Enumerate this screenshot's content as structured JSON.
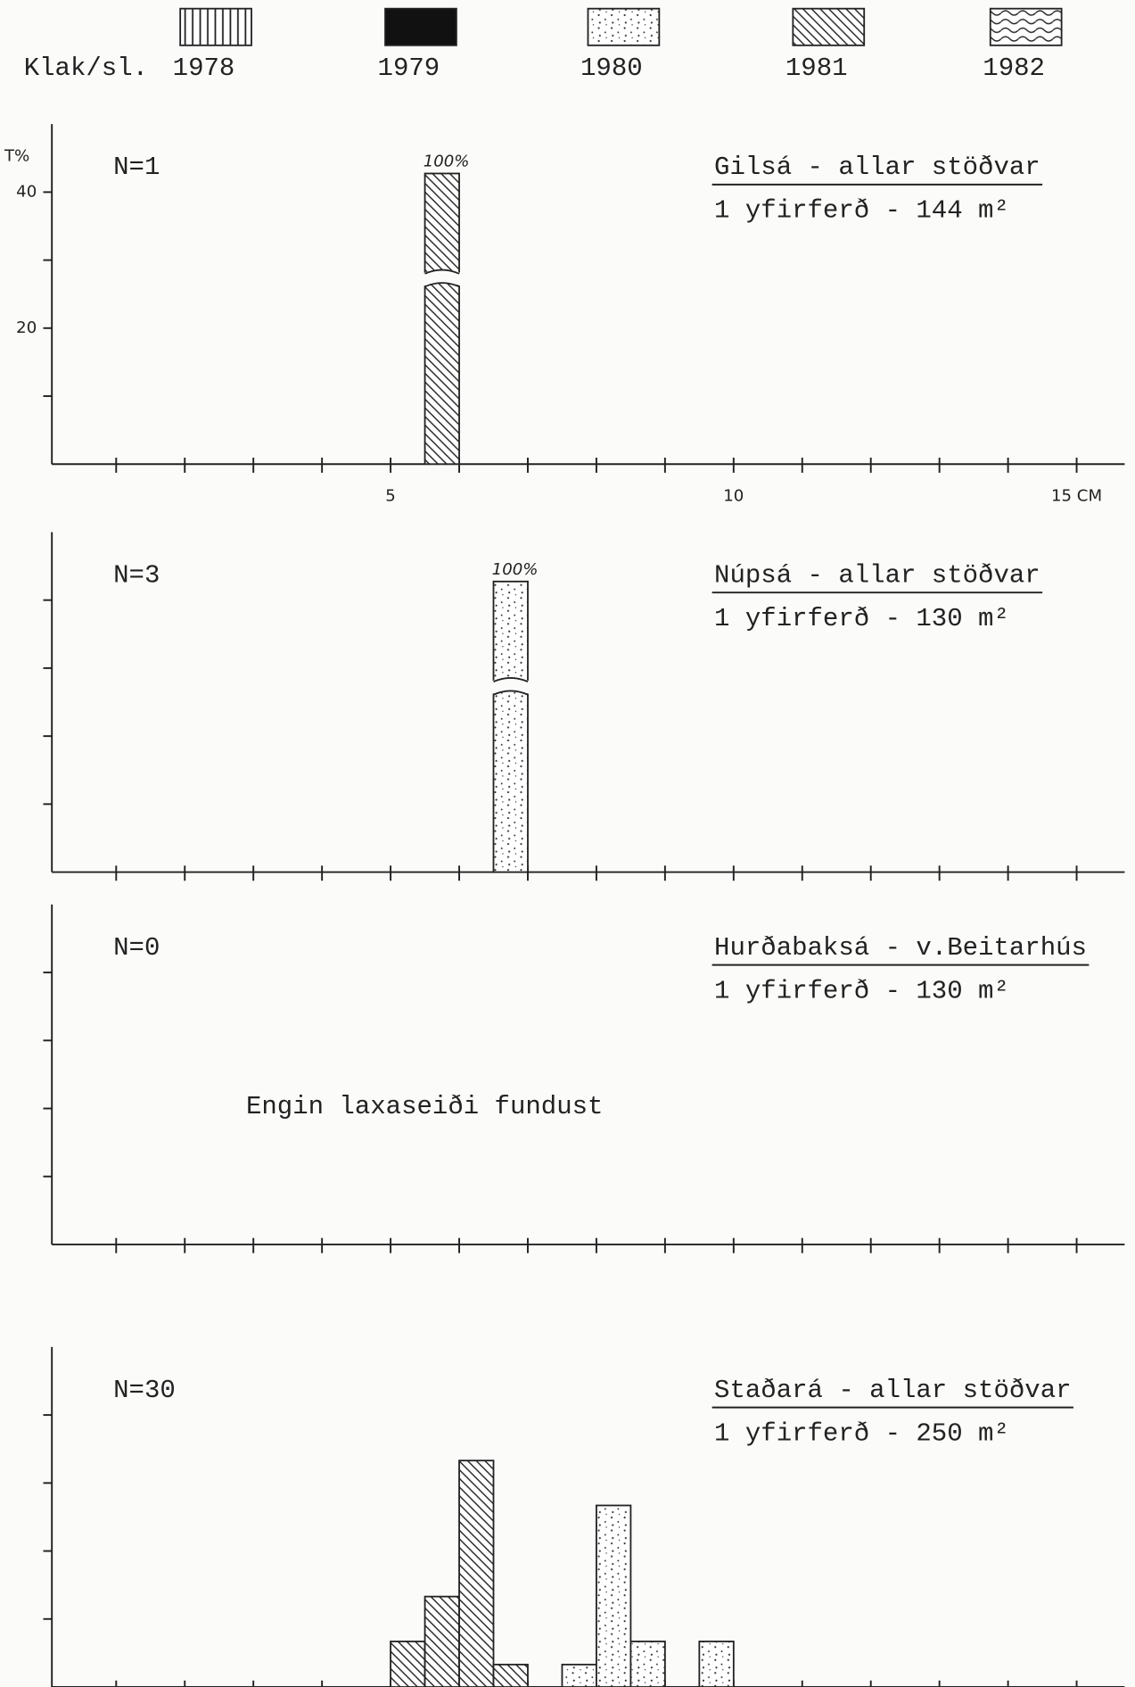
{
  "legend": {
    "label": "Klak/sl.",
    "items": [
      {
        "name": "1978",
        "pattern": "vertical"
      },
      {
        "name": "1979",
        "pattern": "solid"
      },
      {
        "name": "1980",
        "pattern": "dots"
      },
      {
        "name": "1981",
        "pattern": "diagonal"
      },
      {
        "name": "1982",
        "pattern": "wavy"
      }
    ]
  },
  "chart_data": [
    {
      "type": "histogram",
      "note": "N=1",
      "title": "Gilsá - allar stöðvar",
      "subtitle": "1 yfirferð - 144 m²",
      "ylabel": "T%",
      "xlim": [
        0,
        15.7
      ],
      "ylim": [
        0,
        50
      ],
      "xticks": [
        5,
        10,
        {
          "value": 15,
          "label": "15 CM"
        }
      ],
      "xminor_ticks": [
        1,
        2,
        3,
        4,
        6,
        7,
        8,
        9,
        11,
        12,
        13,
        14
      ],
      "yticks": [
        20,
        40
      ],
      "yminor_ticks": [
        10,
        30
      ],
      "series": [
        {
          "pattern": "diagonal",
          "broken": true,
          "bins": [
            5.5,
            6.0
          ],
          "values": [
            100
          ],
          "value_labels": [
            "100%"
          ]
        }
      ]
    },
    {
      "type": "histogram",
      "note": "N=3",
      "title": "Núpsá - allar stöðvar",
      "subtitle": "1 yfirferð - 130 m²",
      "xlim": [
        0,
        15.7
      ],
      "ylim": [
        0,
        50
      ],
      "xminor_ticks": [
        1,
        2,
        3,
        4,
        5,
        6,
        7,
        8,
        9,
        10,
        11,
        12,
        13,
        14,
        15
      ],
      "yminor_ticks": [
        10,
        20,
        30,
        40
      ],
      "series": [
        {
          "pattern": "dots",
          "broken": true,
          "bins": [
            6.5,
            7.0
          ],
          "values": [
            100
          ],
          "value_labels": [
            "100%"
          ]
        }
      ]
    },
    {
      "type": "histogram",
      "note": "N=0",
      "title": "Hurðabaksá - v.Beitarhús",
      "subtitle": "1 yfirferð - 130 m²",
      "annotation": "Engin laxaseiði fundust",
      "xlim": [
        0,
        15.7
      ],
      "ylim": [
        0,
        50
      ],
      "xminor_ticks": [
        1,
        2,
        3,
        4,
        5,
        6,
        7,
        8,
        9,
        10,
        11,
        12,
        13,
        14,
        15
      ],
      "yminor_ticks": [
        10,
        20,
        30,
        40
      ],
      "series": []
    },
    {
      "type": "histogram",
      "note": "N=30",
      "title": "Staðará - allar stöðvar",
      "subtitle": "1 yfirferð - 250 m²",
      "xlim": [
        0,
        15.7
      ],
      "ylim": [
        0,
        50
      ],
      "xminor_ticks": [
        1,
        2,
        3,
        4,
        5,
        6,
        7,
        8,
        9,
        10,
        11,
        12,
        13,
        14,
        15
      ],
      "yminor_ticks": [
        10,
        20,
        30,
        40
      ],
      "series": [
        {
          "pattern": "diagonal",
          "bins": [
            5.0,
            5.5,
            6.0,
            6.5,
            7.0
          ],
          "values": [
            6.7,
            13.3,
            33.3,
            3.3
          ]
        },
        {
          "pattern": "dots",
          "bins": [
            7.5,
            8.0,
            8.5,
            9.0,
            9.5,
            10.0
          ],
          "values": [
            3.3,
            26.7,
            6.7,
            null,
            6.7
          ]
        }
      ]
    }
  ]
}
